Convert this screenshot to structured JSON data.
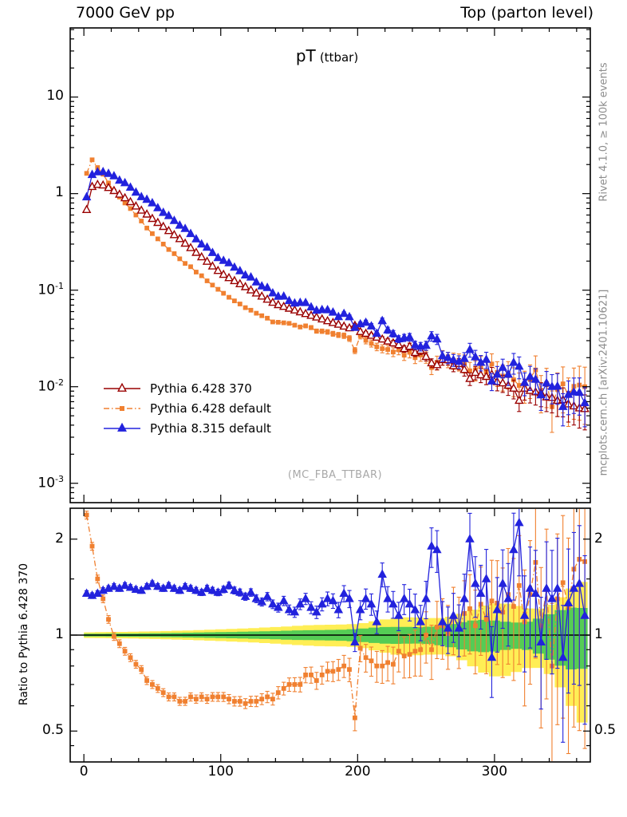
{
  "header": {
    "left": "7000 GeV pp",
    "right": "Top (parton level)"
  },
  "title": {
    "main": "pT",
    "sub": "(ttbar)"
  },
  "watermark": "(MC_FBA_TTBAR)",
  "side_notes": {
    "top": "Rivet 4.1.0, ≥ 100k events",
    "bottom": "mcplots.cern.ch [arXiv:2401.10621]"
  },
  "ratio_label": "Ratio to Pythia 6.428 370",
  "colors": {
    "red": "#990000",
    "orange": "#f08030",
    "blue": "#2222dd",
    "band_yellow": "#ffee55",
    "band_green": "#55cc55",
    "gray_text": "#8c8c8c",
    "frame": "#000000"
  },
  "chart_data": {
    "type": "line",
    "title": "pT (ttbar)",
    "xlabel": "",
    "ylabel": "",
    "x_axis": {
      "lim": [
        -10,
        370
      ],
      "ticks": [
        0,
        100,
        200,
        300
      ]
    },
    "main_axis": {
      "yscale": "log",
      "ylim": [
        0.00063,
        52
      ],
      "yticks": [
        "10",
        "1",
        "10^-1",
        "10^-2",
        "10^-3"
      ],
      "tick_values": [
        10,
        1,
        0.1,
        0.01,
        0.001
      ]
    },
    "x": [
      2,
      6,
      10,
      14,
      18,
      22,
      26,
      30,
      34,
      38,
      42,
      46,
      50,
      54,
      58,
      62,
      66,
      70,
      74,
      78,
      82,
      86,
      90,
      94,
      98,
      102,
      106,
      110,
      114,
      118,
      122,
      126,
      130,
      134,
      138,
      142,
      146,
      150,
      154,
      158,
      162,
      166,
      170,
      174,
      178,
      182,
      186,
      190,
      194,
      198,
      202,
      206,
      210,
      214,
      218,
      222,
      226,
      230,
      234,
      238,
      242,
      246,
      250,
      254,
      258,
      262,
      266,
      270,
      274,
      278,
      282,
      286,
      290,
      294,
      298,
      302,
      306,
      310,
      314,
      318,
      322,
      326,
      330,
      334,
      338,
      342,
      346,
      350,
      354,
      358,
      362,
      366
    ],
    "series": [
      {
        "name": "Pythia 6.428 370",
        "marker": "open-triangle",
        "line": "solid",
        "color": "#990000",
        "err_mult": 1.0,
        "values": [
          0.68,
          1.18,
          1.24,
          1.22,
          1.15,
          1.07,
          0.98,
          0.9,
          0.82,
          0.74,
          0.67,
          0.61,
          0.55,
          0.5,
          0.455,
          0.412,
          0.374,
          0.34,
          0.305,
          0.274,
          0.245,
          0.22,
          0.198,
          0.177,
          0.159,
          0.145,
          0.134,
          0.125,
          0.116,
          0.108,
          0.1,
          0.093,
          0.0863,
          0.0802,
          0.0745,
          0.0705,
          0.0675,
          0.0647,
          0.062,
          0.0594,
          0.0569,
          0.0546,
          0.0523,
          0.0501,
          0.048,
          0.046,
          0.0441,
          0.0422,
          0.0405,
          0.043,
          0.0371,
          0.0355,
          0.0339,
          0.0324,
          0.031,
          0.0296,
          0.0283,
          0.0271,
          0.0247,
          0.0261,
          0.0225,
          0.0237,
          0.0205,
          0.0176,
          0.0168,
          0.0189,
          0.019,
          0.0164,
          0.0173,
          0.015,
          0.0121,
          0.014,
          0.0132,
          0.0127,
          0.0134,
          0.0112,
          0.0109,
          0.0103,
          0.0096,
          0.0072,
          0.0096,
          0.0091,
          0.0088,
          0.0086,
          0.0078,
          0.0077,
          0.0072,
          0.0073,
          0.0066,
          0.0063,
          0.006,
          0.0059
        ]
      },
      {
        "name": "Pythia 6.428 default",
        "marker": "filled-square",
        "line": "dashdot",
        "color": "#f08030",
        "err_mult": 1.5,
        "values": [
          1.62,
          2.24,
          1.86,
          1.59,
          1.29,
          1.06,
          0.92,
          0.8,
          0.7,
          0.6,
          0.52,
          0.44,
          0.385,
          0.34,
          0.3,
          0.264,
          0.239,
          0.211,
          0.189,
          0.175,
          0.154,
          0.141,
          0.125,
          0.113,
          0.102,
          0.0928,
          0.0844,
          0.0775,
          0.0719,
          0.0659,
          0.062,
          0.0577,
          0.0544,
          0.0513,
          0.0469,
          0.0465,
          0.0459,
          0.0453,
          0.0434,
          0.0416,
          0.0427,
          0.041,
          0.0377,
          0.0376,
          0.037,
          0.0354,
          0.0344,
          0.0338,
          0.0316,
          0.0237,
          0.0338,
          0.0302,
          0.0281,
          0.0259,
          0.0248,
          0.0243,
          0.0229,
          0.0241,
          0.0212,
          0.0227,
          0.02,
          0.0213,
          0.0205,
          0.0158,
          0.0178,
          0.0202,
          0.0192,
          0.0187,
          0.0182,
          0.0176,
          0.0146,
          0.015,
          0.0165,
          0.0142,
          0.0172,
          0.0141,
          0.0129,
          0.0138,
          0.0118,
          0.0103,
          0.0106,
          0.0122,
          0.0149,
          0.0092,
          0.0108,
          0.0062,
          0.0094,
          0.0107,
          0.0081,
          0.0101,
          0.0104,
          0.01
        ]
      },
      {
        "name": "Pythia 8.315 default",
        "marker": "filled-triangle",
        "line": "solid",
        "color": "#2222dd",
        "err_mult": 1.1,
        "values": [
          0.92,
          1.57,
          1.67,
          1.68,
          1.61,
          1.52,
          1.37,
          1.29,
          1.16,
          1.03,
          0.925,
          0.868,
          0.798,
          0.71,
          0.636,
          0.589,
          0.524,
          0.469,
          0.433,
          0.384,
          0.338,
          0.299,
          0.277,
          0.244,
          0.216,
          0.202,
          0.191,
          0.172,
          0.158,
          0.143,
          0.136,
          0.121,
          0.11,
          0.106,
          0.0931,
          0.086,
          0.0864,
          0.0776,
          0.0732,
          0.0743,
          0.074,
          0.0666,
          0.0617,
          0.0626,
          0.0624,
          0.0589,
          0.0529,
          0.057,
          0.0527,
          0.0409,
          0.0445,
          0.0462,
          0.0424,
          0.0356,
          0.0481,
          0.0385,
          0.0354,
          0.0312,
          0.0321,
          0.0326,
          0.027,
          0.0261,
          0.0267,
          0.0334,
          0.0311,
          0.0208,
          0.02,
          0.0189,
          0.0182,
          0.0195,
          0.0242,
          0.0203,
          0.0178,
          0.0191,
          0.0114,
          0.0134,
          0.0158,
          0.0134,
          0.0178,
          0.0162,
          0.011,
          0.0127,
          0.0119,
          0.0082,
          0.0109,
          0.01,
          0.0101,
          0.0062,
          0.0083,
          0.0088,
          0.0087,
          0.0068
        ]
      }
    ],
    "ratio_panel": {
      "reference": "Pythia 6.428 370",
      "yscale": "log",
      "ylim": [
        0.4,
        2.5
      ],
      "tick_values": [
        2,
        1,
        0.5
      ],
      "tick_labels": [
        "2",
        "1",
        "0.5"
      ],
      "series": [
        {
          "name": "Pythia 6.428 default",
          "values": [
            2.38,
            1.9,
            1.5,
            1.3,
            1.12,
            0.99,
            0.94,
            0.89,
            0.85,
            0.81,
            0.78,
            0.72,
            0.7,
            0.68,
            0.66,
            0.64,
            0.64,
            0.62,
            0.62,
            0.64,
            0.63,
            0.64,
            0.63,
            0.64,
            0.64,
            0.64,
            0.63,
            0.62,
            0.62,
            0.61,
            0.62,
            0.62,
            0.63,
            0.64,
            0.63,
            0.66,
            0.68,
            0.7,
            0.7,
            0.7,
            0.75,
            0.75,
            0.72,
            0.75,
            0.77,
            0.77,
            0.78,
            0.8,
            0.78,
            0.55,
            0.91,
            0.85,
            0.83,
            0.8,
            0.8,
            0.82,
            0.81,
            0.89,
            0.86,
            0.87,
            0.89,
            0.9,
            1.0,
            0.9,
            1.06,
            1.07,
            1.01,
            1.14,
            1.05,
            1.17,
            1.21,
            1.07,
            1.25,
            1.12,
            1.28,
            1.26,
            1.18,
            1.34,
            1.23,
            1.43,
            1.1,
            1.34,
            1.69,
            1.07,
            1.39,
            0.8,
            1.3,
            1.46,
            1.22,
            1.61,
            1.73,
            1.7
          ]
        },
        {
          "name": "Pythia 8.315 default",
          "values": [
            1.35,
            1.33,
            1.35,
            1.38,
            1.4,
            1.42,
            1.4,
            1.43,
            1.41,
            1.39,
            1.38,
            1.42,
            1.45,
            1.42,
            1.4,
            1.43,
            1.4,
            1.38,
            1.42,
            1.4,
            1.38,
            1.36,
            1.4,
            1.38,
            1.36,
            1.39,
            1.43,
            1.38,
            1.36,
            1.32,
            1.36,
            1.3,
            1.27,
            1.32,
            1.25,
            1.22,
            1.28,
            1.2,
            1.18,
            1.25,
            1.3,
            1.22,
            1.18,
            1.25,
            1.3,
            1.28,
            1.2,
            1.35,
            1.3,
            0.95,
            1.2,
            1.3,
            1.25,
            1.1,
            1.55,
            1.3,
            1.25,
            1.15,
            1.3,
            1.25,
            1.2,
            1.1,
            1.3,
            1.9,
            1.85,
            1.1,
            1.05,
            1.15,
            1.05,
            1.3,
            2.0,
            1.45,
            1.35,
            1.5,
            0.85,
            1.2,
            1.45,
            1.3,
            1.85,
            2.25,
            1.15,
            1.4,
            1.35,
            0.95,
            1.4,
            1.3,
            1.4,
            0.85,
            1.26,
            1.4,
            1.45,
            1.15
          ]
        }
      ],
      "bands": {
        "x": [
          0,
          40,
          80,
          120,
          160,
          200,
          240,
          280,
          320,
          370
        ],
        "yellow": [
          0.02,
          0.025,
          0.035,
          0.05,
          0.07,
          0.09,
          0.13,
          0.18,
          0.25,
          0.38
        ],
        "green": [
          0.01,
          0.012,
          0.018,
          0.025,
          0.035,
          0.045,
          0.065,
          0.09,
          0.125,
          0.19
        ],
        "yellow_color": "#ffee55",
        "green_color": "#55cc55"
      }
    },
    "error_model": {
      "base": 0.015,
      "growth": 0.38,
      "power": 4
    }
  }
}
